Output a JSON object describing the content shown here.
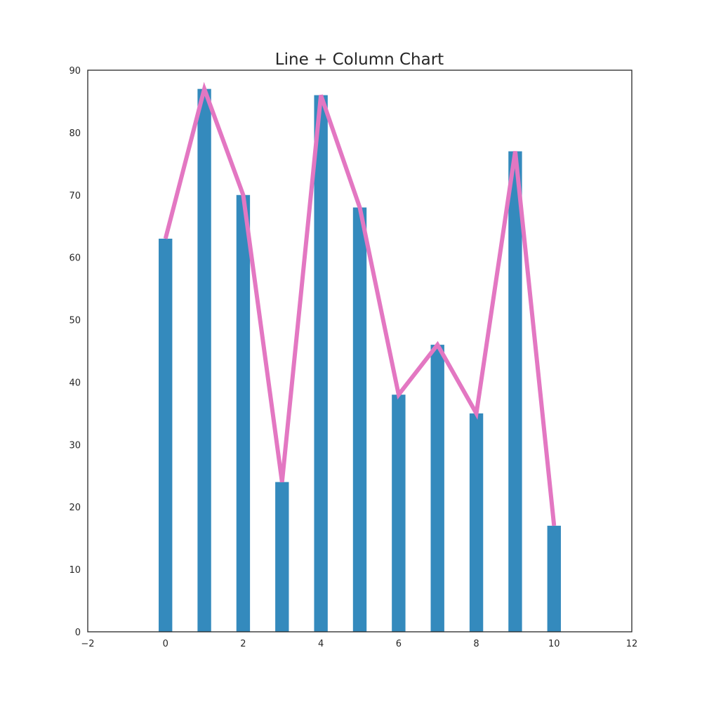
{
  "chart_data": {
    "type": "bar",
    "title": "Line + Column Chart",
    "xlabel": "",
    "ylabel": "",
    "xlim": [
      -2,
      12
    ],
    "ylim": [
      0,
      90
    ],
    "x_ticks": [
      "−2",
      "0",
      "2",
      "4",
      "6",
      "8",
      "10",
      "12"
    ],
    "x_tick_values": [
      -2,
      0,
      2,
      4,
      6,
      8,
      10,
      12
    ],
    "y_ticks": [
      "0",
      "10",
      "20",
      "30",
      "40",
      "50",
      "60",
      "70",
      "80",
      "90"
    ],
    "y_tick_values": [
      0,
      10,
      20,
      30,
      40,
      50,
      60,
      70,
      80,
      90
    ],
    "grid": false,
    "x": [
      0,
      1,
      2,
      3,
      4,
      5,
      6,
      7,
      8,
      9,
      10
    ],
    "series": [
      {
        "kind": "bar",
        "color": "#348abd",
        "values": [
          63,
          87,
          70,
          24,
          86,
          68,
          38,
          46,
          35,
          77,
          17
        ]
      },
      {
        "kind": "line",
        "color": "#e377c2",
        "values": [
          63,
          87,
          70,
          24,
          86,
          68,
          38,
          46,
          35,
          77,
          17
        ]
      }
    ]
  }
}
